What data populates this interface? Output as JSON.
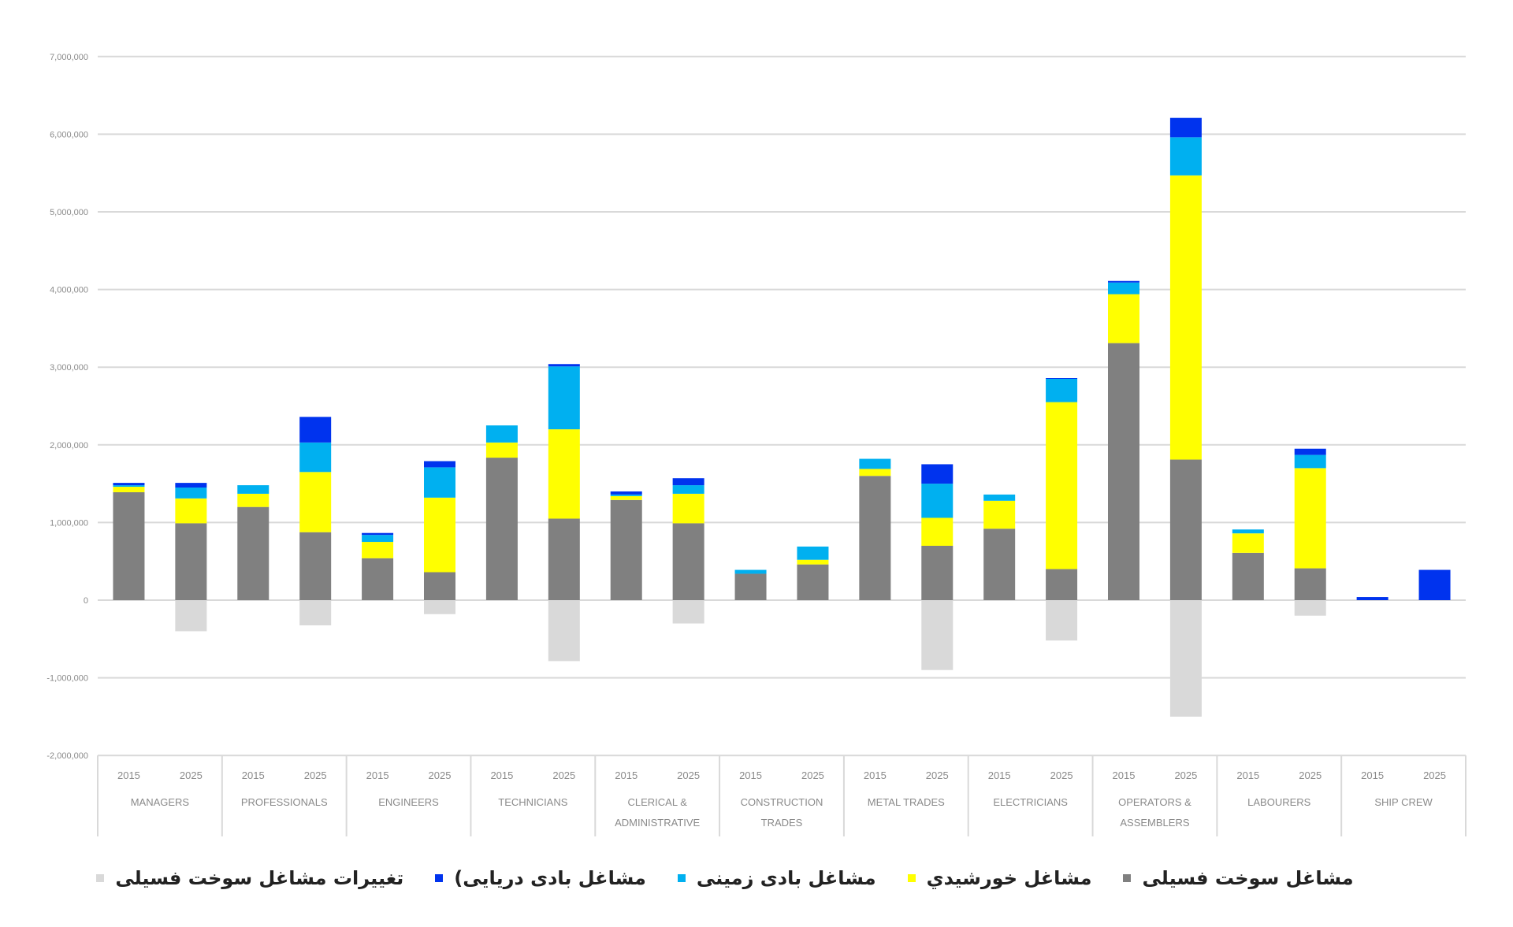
{
  "chart_data": {
    "type": "bar",
    "stacked": true,
    "title": "",
    "xlabel": "",
    "ylabel": "",
    "ylim": [
      -2000000,
      7000000
    ],
    "yticks": [
      7000000,
      6000000,
      5000000,
      4000000,
      3000000,
      2000000,
      1000000,
      0,
      -1000000,
      -2000000
    ],
    "ytick_labels": [
      "7,000,000",
      "6,000,000",
      "5,000,000",
      "4,000,000",
      "3,000,000",
      "2,000,000",
      "1,000,000",
      "0",
      "-1,000,000",
      "-2,000,000"
    ],
    "grid": true,
    "legend_position": "bottom",
    "groups": [
      {
        "label": [
          "MANAGERS"
        ],
        "years": [
          "2015",
          "2025"
        ]
      },
      {
        "label": [
          "PROFESSIONALS"
        ],
        "years": [
          "2015",
          "2025"
        ]
      },
      {
        "label": [
          "ENGINEERS"
        ],
        "years": [
          "2015",
          "2025"
        ]
      },
      {
        "label": [
          "TECHNICIANS"
        ],
        "years": [
          "2015",
          "2025"
        ]
      },
      {
        "label": [
          "CLERICAL &",
          "ADMINISTRATIVE"
        ],
        "years": [
          "2015",
          "2025"
        ]
      },
      {
        "label": [
          "CONSTRUCTION",
          "TRADES"
        ],
        "years": [
          "2015",
          "2025"
        ]
      },
      {
        "label": [
          "METAL TRADES"
        ],
        "years": [
          "2015",
          "2025"
        ]
      },
      {
        "label": [
          "ELECTRICIANS"
        ],
        "years": [
          "2015",
          "2025"
        ]
      },
      {
        "label": [
          "OPERATORS &",
          "ASSEMBLERS"
        ],
        "years": [
          "2015",
          "2025"
        ]
      },
      {
        "label": [
          "LABOURERS"
        ],
        "years": [
          "2015",
          "2025"
        ]
      },
      {
        "label": [
          "SHIP CREW"
        ],
        "years": [
          "2015",
          "2025"
        ]
      }
    ],
    "categories": [
      "MANAGERS 2015",
      "MANAGERS 2025",
      "PROFESSIONALS 2015",
      "PROFESSIONALS 2025",
      "ENGINEERS 2015",
      "ENGINEERS 2025",
      "TECHNICIANS 2015",
      "TECHNICIANS 2025",
      "CLERICAL & ADMINISTRATIVE 2015",
      "CLERICAL & ADMINISTRATIVE 2025",
      "CONSTRUCTION TRADES 2015",
      "CONSTRUCTION TRADES 2025",
      "METAL TRADES 2015",
      "METAL TRADES 2025",
      "ELECTRICIANS 2015",
      "ELECTRICIANS 2025",
      "OPERATORS & ASSEMBLERS 2015",
      "OPERATORS & ASSEMBLERS 2025",
      "LABOURERS 2015",
      "LABOURERS 2025",
      "SHIP CREW 2015",
      "SHIP CREW 2025"
    ],
    "series": [
      {
        "name": "مشاغل سوخت فسیلی",
        "color": "#808080",
        "values": [
          1390000,
          990000,
          1200000,
          875000,
          540000,
          360000,
          1835000,
          1050000,
          1290000,
          990000,
          340000,
          460000,
          1600000,
          700000,
          920000,
          400000,
          3310000,
          1810000,
          610000,
          410000,
          0,
          0
        ]
      },
      {
        "name": "مشاغل خورشيدي",
        "color": "#ffff00",
        "values": [
          70000,
          320000,
          170000,
          775000,
          210000,
          960000,
          195000,
          1150000,
          50000,
          380000,
          0,
          60000,
          90000,
          360000,
          360000,
          2150000,
          630000,
          3660000,
          250000,
          1290000,
          0,
          0
        ]
      },
      {
        "name": "مشاغل بادی زمینی",
        "color": "#00b0f0",
        "values": [
          20000,
          140000,
          110000,
          380000,
          90000,
          390000,
          220000,
          810000,
          20000,
          110000,
          50000,
          170000,
          130000,
          440000,
          80000,
          300000,
          150000,
          490000,
          50000,
          170000,
          0,
          0
        ]
      },
      {
        "name": "مشاغل بادی دریایی)",
        "color": "#0033ee",
        "values": [
          30000,
          60000,
          0,
          330000,
          25000,
          80000,
          0,
          30000,
          40000,
          90000,
          0,
          0,
          0,
          250000,
          0,
          10000,
          20000,
          250000,
          0,
          80000,
          40000,
          390000
        ]
      },
      {
        "name": "تغییرات مشاغل سوخت فسیلی",
        "color": "#d9d9d9",
        "values": [
          0,
          -400000,
          0,
          -325000,
          0,
          -180000,
          0,
          -785000,
          0,
          -300000,
          0,
          0,
          0,
          -900000,
          0,
          -520000,
          0,
          -1500000,
          0,
          -200000,
          0,
          0
        ]
      }
    ]
  },
  "legend": {
    "items": [
      {
        "label": "تغییرات مشاغل سوخت فسیلی",
        "color": "#d9d9d9"
      },
      {
        "label": "مشاغل بادی دریایی)",
        "color": "#0033ee"
      },
      {
        "label": "مشاغل بادی زمینی",
        "color": "#00b0f0"
      },
      {
        "label": "مشاغل خورشيدي",
        "color": "#ffff00"
      },
      {
        "label": "مشاغل سوخت فسیلی",
        "color": "#808080"
      }
    ]
  },
  "colors": {
    "grid": "#d9d9d9",
    "axis_text": "#8a8a8a",
    "background": "#ffffff"
  }
}
